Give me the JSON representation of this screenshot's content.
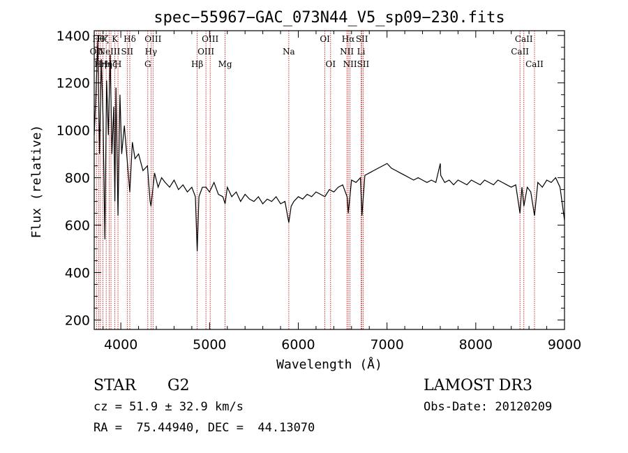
{
  "chart_data": {
    "type": "line",
    "title": "spec−55967−GAC_073N44_V5_sp09−230.fits",
    "xlabel": "Wavelength (Å)",
    "ylabel": "Flux (relative)",
    "xlim": [
      3700,
      9000
    ],
    "ylim": [
      160,
      1420
    ],
    "xticks": [
      4000,
      5000,
      6000,
      7000,
      8000,
      9000
    ],
    "yticks": [
      200,
      400,
      600,
      800,
      1000,
      1200,
      1400
    ],
    "series": [
      {
        "name": "spectrum",
        "x": [
          3700,
          3720,
          3740,
          3760,
          3780,
          3800,
          3820,
          3840,
          3860,
          3880,
          3900,
          3920,
          3933,
          3945,
          3968,
          3990,
          4010,
          4040,
          4070,
          4101,
          4130,
          4160,
          4200,
          4250,
          4300,
          4330,
          4340,
          4380,
          4420,
          4460,
          4500,
          4550,
          4600,
          4650,
          4700,
          4750,
          4800,
          4840,
          4861,
          4880,
          4920,
          4960,
          5000,
          5050,
          5100,
          5150,
          5175,
          5200,
          5250,
          5300,
          5350,
          5400,
          5450,
          5500,
          5550,
          5600,
          5650,
          5700,
          5750,
          5800,
          5850,
          5893,
          5920,
          5950,
          6000,
          6050,
          6100,
          6150,
          6200,
          6250,
          6300,
          6350,
          6400,
          6450,
          6500,
          6550,
          6563,
          6600,
          6650,
          6700,
          6717,
          6750,
          6800,
          6850,
          6900,
          6950,
          7000,
          7050,
          7100,
          7150,
          7200,
          7250,
          7300,
          7350,
          7400,
          7450,
          7500,
          7550,
          7600,
          7605,
          7650,
          7700,
          7750,
          7800,
          7850,
          7900,
          7950,
          8000,
          8050,
          8100,
          8150,
          8200,
          8250,
          8300,
          8350,
          8400,
          8450,
          8498,
          8520,
          8542,
          8580,
          8620,
          8662,
          8700,
          8750,
          8800,
          8850,
          8900,
          8950,
          9000
        ],
        "values": [
          980,
          1150,
          1380,
          900,
          1300,
          1050,
          540,
          1210,
          980,
          1320,
          900,
          1100,
          700,
          1180,
          640,
          1150,
          900,
          1020,
          880,
          740,
          950,
          880,
          900,
          830,
          850,
          700,
          680,
          820,
          760,
          800,
          780,
          760,
          790,
          750,
          770,
          740,
          760,
          720,
          490,
          720,
          760,
          760,
          740,
          780,
          730,
          720,
          690,
          760,
          720,
          740,
          700,
          730,
          710,
          700,
          720,
          690,
          710,
          700,
          720,
          690,
          700,
          610,
          680,
          700,
          720,
          710,
          730,
          720,
          740,
          730,
          720,
          750,
          740,
          760,
          770,
          720,
          650,
          790,
          780,
          800,
          640,
          810,
          820,
          830,
          840,
          850,
          860,
          840,
          830,
          820,
          810,
          800,
          790,
          800,
          790,
          780,
          790,
          780,
          860,
          810,
          780,
          790,
          770,
          790,
          780,
          770,
          790,
          780,
          770,
          790,
          780,
          770,
          790,
          780,
          770,
          760,
          770,
          650,
          760,
          680,
          760,
          740,
          640,
          780,
          760,
          790,
          780,
          800,
          760,
          620
        ]
      }
    ],
    "spectral_lines": [
      {
        "wavelength": 3726,
        "label": "OII",
        "row": 2
      },
      {
        "wavelength": 3750,
        "label": "Hθ",
        "row": 1
      },
      {
        "wavelength": 3770,
        "label": "Hη",
        "row": 3
      },
      {
        "wavelength": 3798,
        "label": "Hζ",
        "row": 1
      },
      {
        "wavelength": 3835,
        "label": "Hη",
        "row": 3
      },
      {
        "wavelength": 3869,
        "label": "NeIII",
        "row": 2
      },
      {
        "wavelength": 3889,
        "label": "Hζ",
        "row": 3
      },
      {
        "wavelength": 3933,
        "label": "K",
        "row": 1
      },
      {
        "wavelength": 3968,
        "label": "H",
        "row": 3
      },
      {
        "wavelength": 4072,
        "label": "SII",
        "row": 2
      },
      {
        "wavelength": 4101,
        "label": "Hδ",
        "row": 1
      },
      {
        "wavelength": 4304,
        "label": "G",
        "row": 3
      },
      {
        "wavelength": 4340,
        "label": "Hγ",
        "row": 2
      },
      {
        "wavelength": 4363,
        "label": "OIII",
        "row": 1
      },
      {
        "wavelength": 4861,
        "label": "Hβ",
        "row": 3
      },
      {
        "wavelength": 4959,
        "label": "OIII",
        "row": 2
      },
      {
        "wavelength": 5007,
        "label": "OIII",
        "row": 1
      },
      {
        "wavelength": 5175,
        "label": "Mg",
        "row": 3
      },
      {
        "wavelength": 5893,
        "label": "Na",
        "row": 2
      },
      {
        "wavelength": 6300,
        "label": "OI",
        "row": 1
      },
      {
        "wavelength": 6364,
        "label": "OI",
        "row": 3
      },
      {
        "wavelength": 6548,
        "label": "NII",
        "row": 2
      },
      {
        "wavelength": 6563,
        "label": "Hα",
        "row": 1
      },
      {
        "wavelength": 6583,
        "label": "NII",
        "row": 3
      },
      {
        "wavelength": 6708,
        "label": "Li",
        "row": 2
      },
      {
        "wavelength": 6717,
        "label": "SII",
        "row": 1
      },
      {
        "wavelength": 6731,
        "label": "SII",
        "row": 3
      },
      {
        "wavelength": 8498,
        "label": "CaII",
        "row": 2
      },
      {
        "wavelength": 8542,
        "label": "CaII",
        "row": 1
      },
      {
        "wavelength": 8662,
        "label": "CaII",
        "row": 3
      }
    ]
  },
  "info": {
    "class_label": "STAR",
    "subclass": "G2",
    "survey": "LAMOST DR3",
    "cz": "cz = 51.9 ± 32.9 km/s",
    "obs_date": "Obs-Date: 20120209",
    "coords": "RA =  75.44940, DEC =  44.13070"
  },
  "colors": {
    "spectrum": "#000000",
    "line_marker": "#cc0000",
    "axis": "#000000"
  }
}
